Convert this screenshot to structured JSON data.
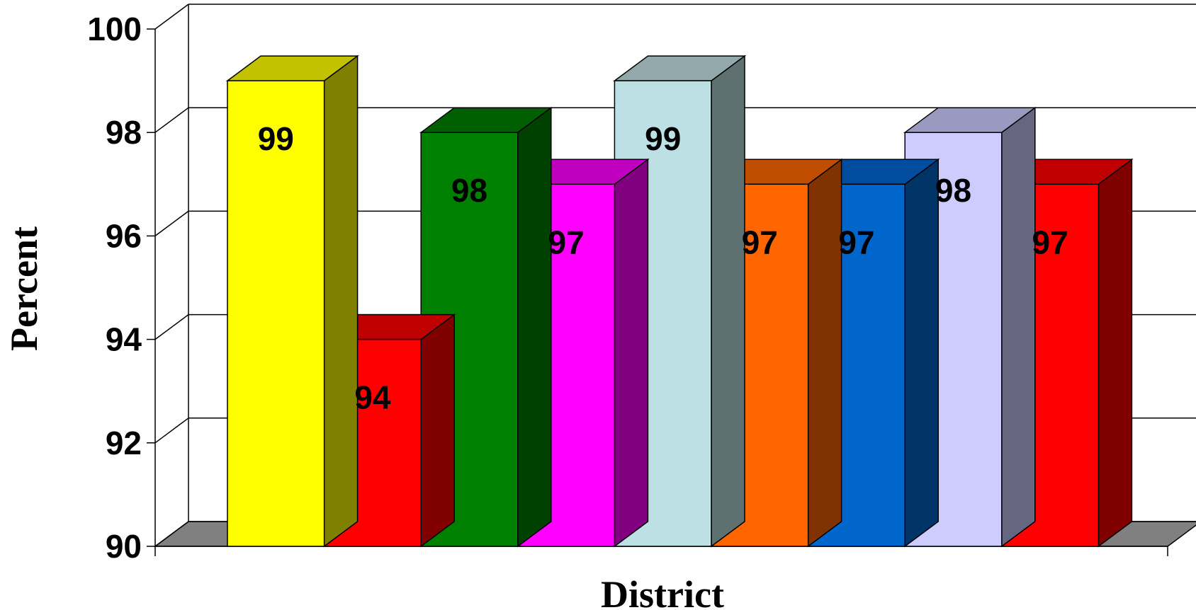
{
  "chart_data": {
    "type": "bar",
    "title": "",
    "xlabel": "District",
    "ylabel": "Percent",
    "ylim": [
      90,
      100
    ],
    "yticks": [
      90,
      92,
      94,
      96,
      98,
      100
    ],
    "grid": true,
    "series": [
      {
        "values": [
          99,
          94,
          98,
          97,
          99,
          97,
          97,
          98,
          97
        ],
        "colors": [
          "#FFFF00",
          "#FF0000",
          "#008000",
          "#FF00FF",
          "#BCE0E4",
          "#FF6600",
          "#0066CC",
          "#CCCCFF",
          "#FF0000"
        ],
        "top_colors": [
          "#C2C200",
          "#C00000",
          "#005F00",
          "#C000C0",
          "#92A8AA",
          "#C04D00",
          "#004DA0",
          "#9A9AC0",
          "#C00000"
        ],
        "side_colors": [
          "#808000",
          "#800000",
          "#004000",
          "#800080",
          "#5E7070",
          "#803300",
          "#003366",
          "#666680",
          "#800000"
        ]
      }
    ]
  }
}
